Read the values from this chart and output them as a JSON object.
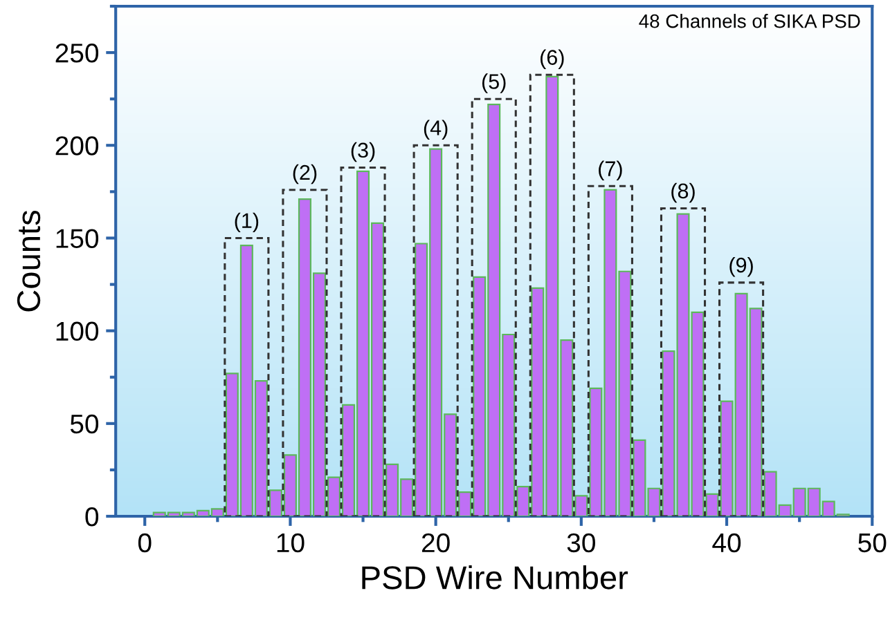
{
  "chart_data": {
    "type": "bar",
    "xlabel": "PSD Wire Number",
    "ylabel": "Counts",
    "x": [
      1,
      2,
      3,
      4,
      5,
      6,
      7,
      8,
      9,
      10,
      11,
      12,
      13,
      14,
      15,
      16,
      17,
      18,
      19,
      20,
      21,
      22,
      23,
      24,
      25,
      26,
      27,
      28,
      29,
      30,
      31,
      32,
      33,
      34,
      35,
      36,
      37,
      38,
      39,
      40,
      41,
      42,
      43,
      44,
      45,
      46,
      47,
      48
    ],
    "series": [
      {
        "color": "#bf6ff5",
        "values": [
          2,
          2,
          2,
          3,
          4,
          77,
          146,
          73,
          14,
          33,
          171,
          131,
          21,
          60,
          186,
          158,
          28,
          20,
          147,
          198,
          55,
          13,
          129,
          222,
          98,
          16,
          123,
          237,
          95,
          11,
          69,
          176,
          132,
          41,
          15,
          89,
          163,
          110,
          12,
          62,
          120,
          112,
          24,
          6,
          15,
          15,
          8,
          1
        ]
      },
      {
        "color": "#333333",
        "line_style": "dashed",
        "x": [
          7,
          11,
          15,
          20,
          24,
          28,
          32,
          37,
          41
        ],
        "values": [
          150,
          176,
          188,
          200,
          225,
          238,
          178,
          166,
          126
        ]
      }
    ],
    "xlim": [
      -2,
      50
    ],
    "xticks": [
      0,
      10,
      20,
      30,
      40,
      50
    ],
    "ylim": [
      0,
      275
    ],
    "yticks": [
      0,
      50,
      100,
      150,
      200,
      250
    ],
    "grid": false,
    "legend": false,
    "annotations": [
      "48 Channels of SIKA PSD",
      {
        "text": "(1)",
        "x": 7,
        "y": 150
      },
      {
        "text": "(2)",
        "x": 11,
        "y": 176
      },
      {
        "text": "(3)",
        "x": 15,
        "y": 188
      },
      {
        "text": "(4)",
        "x": 20,
        "y": 200
      },
      {
        "text": "(5)",
        "x": 24,
        "y": 225
      },
      {
        "text": "(6)",
        "x": 28,
        "y": 238
      },
      {
        "text": "(7)",
        "x": 32,
        "y": 178
      },
      {
        "text": "(8)",
        "x": 37,
        "y": 166
      },
      {
        "text": "(9)",
        "x": 41,
        "y": 126
      }
    ]
  }
}
